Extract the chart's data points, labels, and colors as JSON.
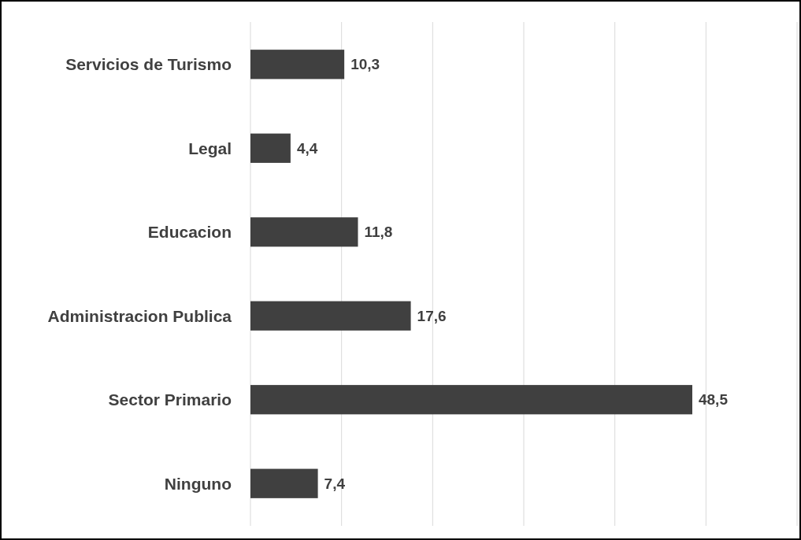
{
  "chart_data": {
    "type": "bar",
    "orientation": "horizontal",
    "categories": [
      "Servicios de Turismo",
      "Legal",
      "Educacion",
      "Administracion Publica",
      "Sector Primario",
      "Ninguno"
    ],
    "values": [
      10.3,
      4.4,
      11.8,
      17.6,
      48.5,
      7.4
    ],
    "value_labels": [
      "10,3",
      "4,4",
      "11,8",
      "17,6",
      "48,5",
      "7,4"
    ],
    "color": "#404040",
    "xlim": [
      0,
      60
    ],
    "xticks": [
      {
        "value": 0,
        "label": null
      },
      {
        "value": 10,
        "label": null
      },
      {
        "value": 20,
        "label": null
      },
      {
        "value": 30,
        "label": null
      },
      {
        "value": 40,
        "label": null
      },
      {
        "value": 50,
        "label": null
      },
      {
        "value": 60,
        "label": null
      }
    ],
    "grid": "x",
    "tick_labels": "y"
  }
}
